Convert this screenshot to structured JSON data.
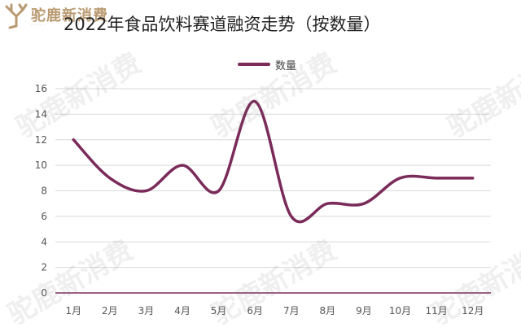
{
  "brand": {
    "name": "驼鹿新消费",
    "icon": "moose-logo-icon",
    "color": "#b99a70"
  },
  "watermark_text": "驼鹿新消费",
  "chart_data": {
    "type": "line",
    "title": "2022年食品饮料赛道融资走势（按数量）",
    "categories": [
      "1月",
      "2月",
      "3月",
      "4月",
      "5月",
      "6月",
      "7月",
      "8月",
      "9月",
      "10月",
      "11月",
      "12月"
    ],
    "series": [
      {
        "name": "数量",
        "values": [
          12,
          9,
          8,
          10,
          8,
          15,
          6,
          7,
          7,
          9,
          9,
          9
        ],
        "color": "#7a2b5a"
      }
    ],
    "yticks": [
      "0",
      "2",
      "4",
      "6",
      "8",
      "10",
      "12",
      "14",
      "16"
    ],
    "ylim": [
      0,
      16
    ],
    "grid": true,
    "legend": "top-center",
    "smooth": true
  }
}
